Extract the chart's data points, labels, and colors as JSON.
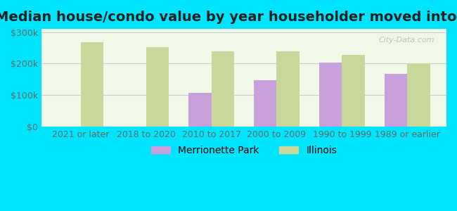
{
  "title": "Median house/condo value by year householder moved into unit",
  "categories": [
    "2021 or later",
    "2018 to 2020",
    "2010 to 2017",
    "2000 to 2009",
    "1990 to 1999",
    "1989 or earlier"
  ],
  "merrionette_park": [
    null,
    null,
    107000,
    147000,
    204000,
    168000
  ],
  "illinois": [
    268000,
    252000,
    240000,
    238000,
    228000,
    200000
  ],
  "merrionette_color": "#c9a0dc",
  "illinois_color": "#c8d89a",
  "background_outer": "#00e5ff",
  "background_inner": "#f0f8e8",
  "ylabel_ticks": [
    "$0",
    "$100k",
    "$200k",
    "$300k"
  ],
  "ytick_values": [
    0,
    100000,
    200000,
    300000
  ],
  "ylim": [
    0,
    310000
  ],
  "bar_width": 0.35,
  "title_fontsize": 14,
  "tick_fontsize": 9,
  "legend_fontsize": 10,
  "watermark": "City-Data.com"
}
